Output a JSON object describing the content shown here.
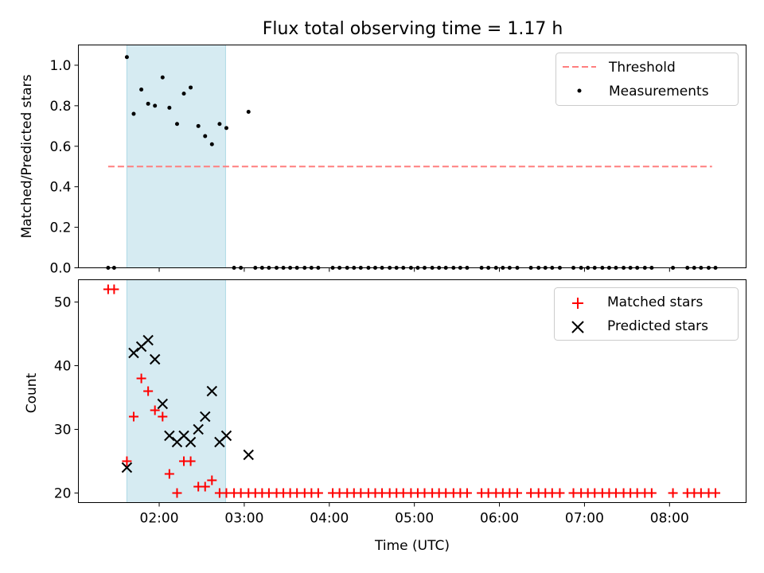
{
  "chart_data": [
    {
      "type": "scatter",
      "title": "Flux total observing time = 1.17 h",
      "xlabel": "",
      "ylabel": "Matched/Predicted stars",
      "xlim_hours": [
        1.05,
        8.9
      ],
      "ylim": [
        0,
        1.1
      ],
      "yticks": [
        0.0,
        0.2,
        0.4,
        0.6,
        0.8,
        1.0
      ],
      "ytick_labels": [
        "0.0",
        "0.2",
        "0.4",
        "0.6",
        "0.8",
        "1.0"
      ],
      "xtick_hours": [
        2,
        3,
        4,
        5,
        6,
        7,
        8
      ],
      "grid": false,
      "legend_position": "top-right",
      "legend": [
        "Threshold",
        "Measurements"
      ],
      "shaded_span_hours": [
        1.62,
        2.78
      ],
      "threshold": {
        "name": "Threshold",
        "value": 0.5,
        "x_start_hours": 1.4,
        "x_end_hours": 8.5,
        "color": "#ff7f7f"
      },
      "measurements": {
        "name": "Measurements",
        "color": "#000000",
        "x_hours": [
          1.4,
          1.47,
          1.62,
          1.7,
          1.79,
          1.87,
          1.95,
          2.04,
          2.12,
          2.21,
          2.29,
          2.37,
          2.46,
          2.54,
          2.62,
          2.71,
          2.79,
          2.88,
          2.96,
          3.05,
          3.13,
          3.21,
          3.29,
          3.38,
          3.46,
          3.54,
          3.62,
          3.71,
          3.79,
          3.87,
          4.04,
          4.12,
          4.21,
          4.29,
          4.37,
          4.46,
          4.54,
          4.62,
          4.71,
          4.79,
          4.87,
          4.96,
          5.04,
          5.12,
          5.21,
          5.29,
          5.37,
          5.46,
          5.54,
          5.62,
          5.79,
          5.87,
          5.96,
          6.04,
          6.12,
          6.21,
          6.37,
          6.46,
          6.54,
          6.62,
          6.71,
          6.87,
          6.96,
          7.04,
          7.12,
          7.21,
          7.29,
          7.37,
          7.46,
          7.54,
          7.62,
          7.71,
          7.79,
          8.04,
          8.21,
          8.29,
          8.37,
          8.46,
          8.54
        ],
        "y": [
          0,
          0,
          1.04,
          0.76,
          0.88,
          0.81,
          0.8,
          0.94,
          0.79,
          0.71,
          0.86,
          0.89,
          0.7,
          0.65,
          0.61,
          0.71,
          0.69,
          0,
          0,
          0.77,
          0,
          0,
          0,
          0,
          0,
          0,
          0,
          0,
          0,
          0,
          0,
          0,
          0,
          0,
          0,
          0,
          0,
          0,
          0,
          0,
          0,
          0,
          0,
          0,
          0,
          0,
          0,
          0,
          0,
          0,
          0,
          0,
          0,
          0,
          0,
          0,
          0,
          0,
          0,
          0,
          0,
          0,
          0,
          0,
          0,
          0,
          0,
          0,
          0,
          0,
          0,
          0,
          0,
          0,
          0,
          0,
          0,
          0,
          0
        ]
      }
    },
    {
      "type": "scatter",
      "title": "",
      "xlabel": "Time (UTC)",
      "ylabel": "Count",
      "xlim_hours": [
        1.05,
        8.9
      ],
      "ylim": [
        18.5,
        53.5
      ],
      "yticks": [
        20,
        30,
        40,
        50
      ],
      "ytick_labels": [
        "20",
        "30",
        "40",
        "50"
      ],
      "xtick_hours": [
        2,
        3,
        4,
        5,
        6,
        7,
        8
      ],
      "xtick_labels": [
        "02:00",
        "03:00",
        "04:00",
        "05:00",
        "06:00",
        "07:00",
        "08:00"
      ],
      "grid": false,
      "legend_position": "top-right",
      "legend": [
        "Matched stars",
        "Predicted stars"
      ],
      "shaded_span_hours": [
        1.62,
        2.78
      ],
      "series": [
        {
          "name": "Matched stars",
          "marker": "+",
          "color": "#ff0000",
          "x_hours": [
            1.4,
            1.47,
            1.62,
            1.7,
            1.79,
            1.87,
            1.95,
            2.04,
            2.12,
            2.21,
            2.29,
            2.37,
            2.46,
            2.54,
            2.62,
            2.71,
            2.79,
            2.88,
            2.96,
            3.05,
            3.13,
            3.21,
            3.29,
            3.38,
            3.46,
            3.54,
            3.62,
            3.71,
            3.79,
            3.87,
            4.04,
            4.12,
            4.21,
            4.29,
            4.37,
            4.46,
            4.54,
            4.62,
            4.71,
            4.79,
            4.87,
            4.96,
            5.04,
            5.12,
            5.21,
            5.29,
            5.37,
            5.46,
            5.54,
            5.62,
            5.79,
            5.87,
            5.96,
            6.04,
            6.12,
            6.21,
            6.37,
            6.46,
            6.54,
            6.62,
            6.71,
            6.87,
            6.96,
            7.04,
            7.12,
            7.21,
            7.29,
            7.37,
            7.46,
            7.54,
            7.62,
            7.71,
            7.79,
            8.04,
            8.21,
            8.29,
            8.37,
            8.46,
            8.54
          ],
          "y": [
            52,
            52,
            25,
            32,
            38,
            36,
            33,
            32,
            23,
            20,
            25,
            25,
            21,
            21,
            22,
            20,
            20,
            20,
            20,
            20,
            20,
            20,
            20,
            20,
            20,
            20,
            20,
            20,
            20,
            20,
            20,
            20,
            20,
            20,
            20,
            20,
            20,
            20,
            20,
            20,
            20,
            20,
            20,
            20,
            20,
            20,
            20,
            20,
            20,
            20,
            20,
            20,
            20,
            20,
            20,
            20,
            20,
            20,
            20,
            20,
            20,
            20,
            20,
            20,
            20,
            20,
            20,
            20,
            20,
            20,
            20,
            20,
            20,
            20,
            20,
            20,
            20,
            20,
            20
          ]
        },
        {
          "name": "Predicted stars",
          "marker": "x",
          "color": "#000000",
          "x_hours": [
            1.62,
            1.7,
            1.79,
            1.87,
            1.95,
            2.04,
            2.12,
            2.21,
            2.29,
            2.37,
            2.46,
            2.54,
            2.62,
            2.71,
            2.79,
            3.05
          ],
          "y": [
            24,
            42,
            43,
            44,
            41,
            34,
            29,
            28,
            29,
            28,
            30,
            32,
            36,
            28,
            29,
            26
          ]
        }
      ]
    }
  ]
}
